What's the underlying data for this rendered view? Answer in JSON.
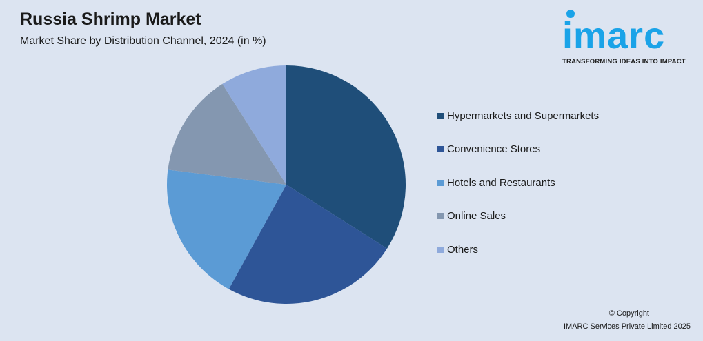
{
  "header": {
    "title": "Russia Shrimp Market",
    "subtitle": "Market Share by Distribution Channel, 2024 (in %)"
  },
  "logo": {
    "text": "imarc",
    "tagline": "TRANSFORMING IDEAS INTO IMPACT",
    "color": "#1aa3e8"
  },
  "footer": {
    "copyright": "© Copyright",
    "company": "IMARC Services Private Limited 2025"
  },
  "chart_data": {
    "type": "pie",
    "title": "Market Share by Distribution Channel, 2024 (in %)",
    "categories": [
      "Hypermarkets and Supermarkets",
      "Convenience Stores",
      "Hotels and Restaurants",
      "Online Sales",
      "Others"
    ],
    "values": [
      34,
      24,
      19,
      14,
      9
    ],
    "colors": [
      "#1f4e79",
      "#2e5597",
      "#5b9bd5",
      "#8497b0",
      "#8faadc"
    ],
    "start": "top",
    "direction": "clockwise",
    "legend": "right"
  }
}
